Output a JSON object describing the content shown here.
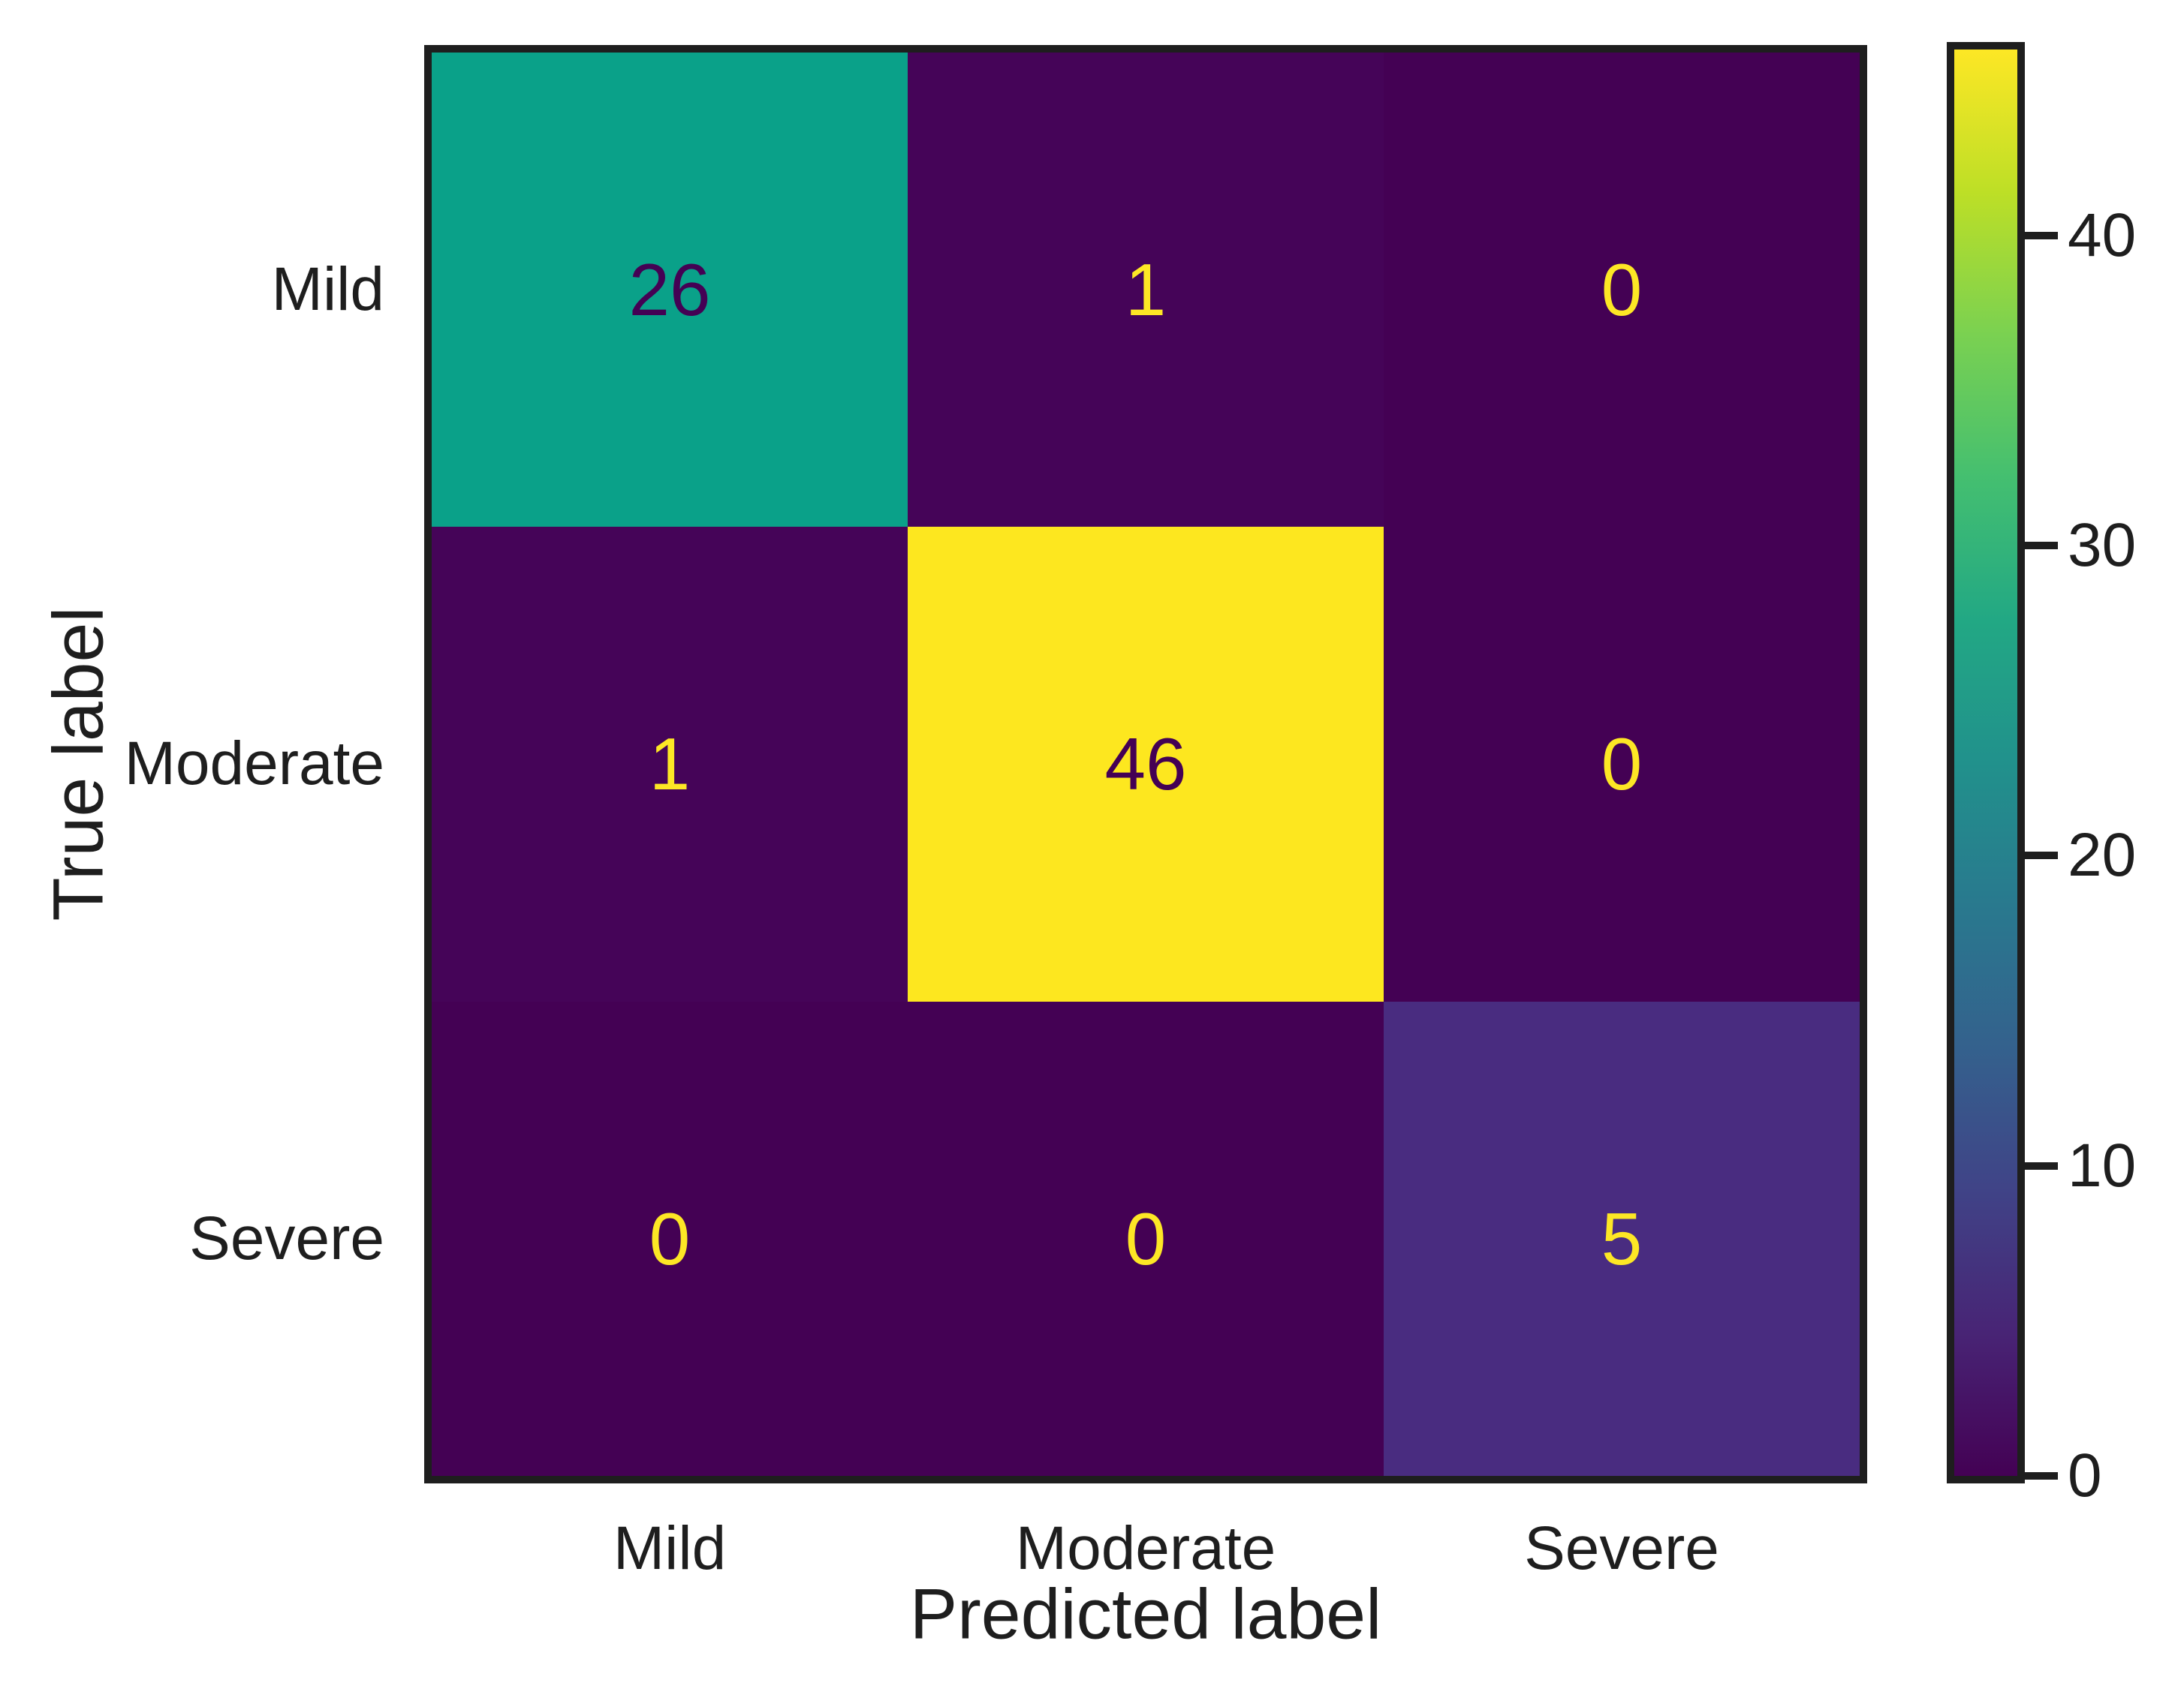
{
  "figure": {
    "background": "#ffffff",
    "axis_color": "#1e1e1e"
  },
  "chart_data": {
    "type": "heatmap",
    "subtype": "confusion-matrix",
    "title": "",
    "xlabel": "Predicted label",
    "ylabel": "True label",
    "x_categories": [
      "Mild",
      "Moderate",
      "Severe"
    ],
    "y_categories": [
      "Mild",
      "Moderate",
      "Severe"
    ],
    "matrix": [
      [
        26,
        1,
        0
      ],
      [
        1,
        46,
        0
      ],
      [
        0,
        0,
        5
      ]
    ],
    "vmin": 0,
    "vmax": 46,
    "colormap": "viridis",
    "grid": false,
    "legend_position": "colorbar-right",
    "cells": [
      {
        "row": "Mild",
        "col": "Mild",
        "value": "26",
        "bg": "#0aa189",
        "fg": "#440154"
      },
      {
        "row": "Mild",
        "col": "Moderate",
        "value": "1",
        "bg": "#450458",
        "fg": "#fde725"
      },
      {
        "row": "Mild",
        "col": "Severe",
        "value": "0",
        "bg": "#440154",
        "fg": "#fde725"
      },
      {
        "row": "Moderate",
        "col": "Mild",
        "value": "1",
        "bg": "#450458",
        "fg": "#fde725"
      },
      {
        "row": "Moderate",
        "col": "Moderate",
        "value": "46",
        "bg": "#fde71f",
        "fg": "#440154"
      },
      {
        "row": "Moderate",
        "col": "Severe",
        "value": "0",
        "bg": "#440154",
        "fg": "#fde725"
      },
      {
        "row": "Severe",
        "col": "Mild",
        "value": "0",
        "bg": "#440154",
        "fg": "#fde725"
      },
      {
        "row": "Severe",
        "col": "Moderate",
        "value": "0",
        "bg": "#440154",
        "fg": "#fde725"
      },
      {
        "row": "Severe",
        "col": "Severe",
        "value": "5",
        "bg": "#492c80",
        "fg": "#fde725"
      }
    ],
    "colorbar": {
      "ticks": [
        {
          "value": 0,
          "label": "0"
        },
        {
          "value": 10,
          "label": "10"
        },
        {
          "value": 20,
          "label": "20"
        },
        {
          "value": 30,
          "label": "30"
        },
        {
          "value": 40,
          "label": "40"
        }
      ],
      "gradient_stops": [
        "#440154",
        "#482475",
        "#404387",
        "#34618d",
        "#29798e",
        "#21918c",
        "#22a884",
        "#44bf70",
        "#7ad151",
        "#bddf26",
        "#fde725"
      ]
    }
  }
}
